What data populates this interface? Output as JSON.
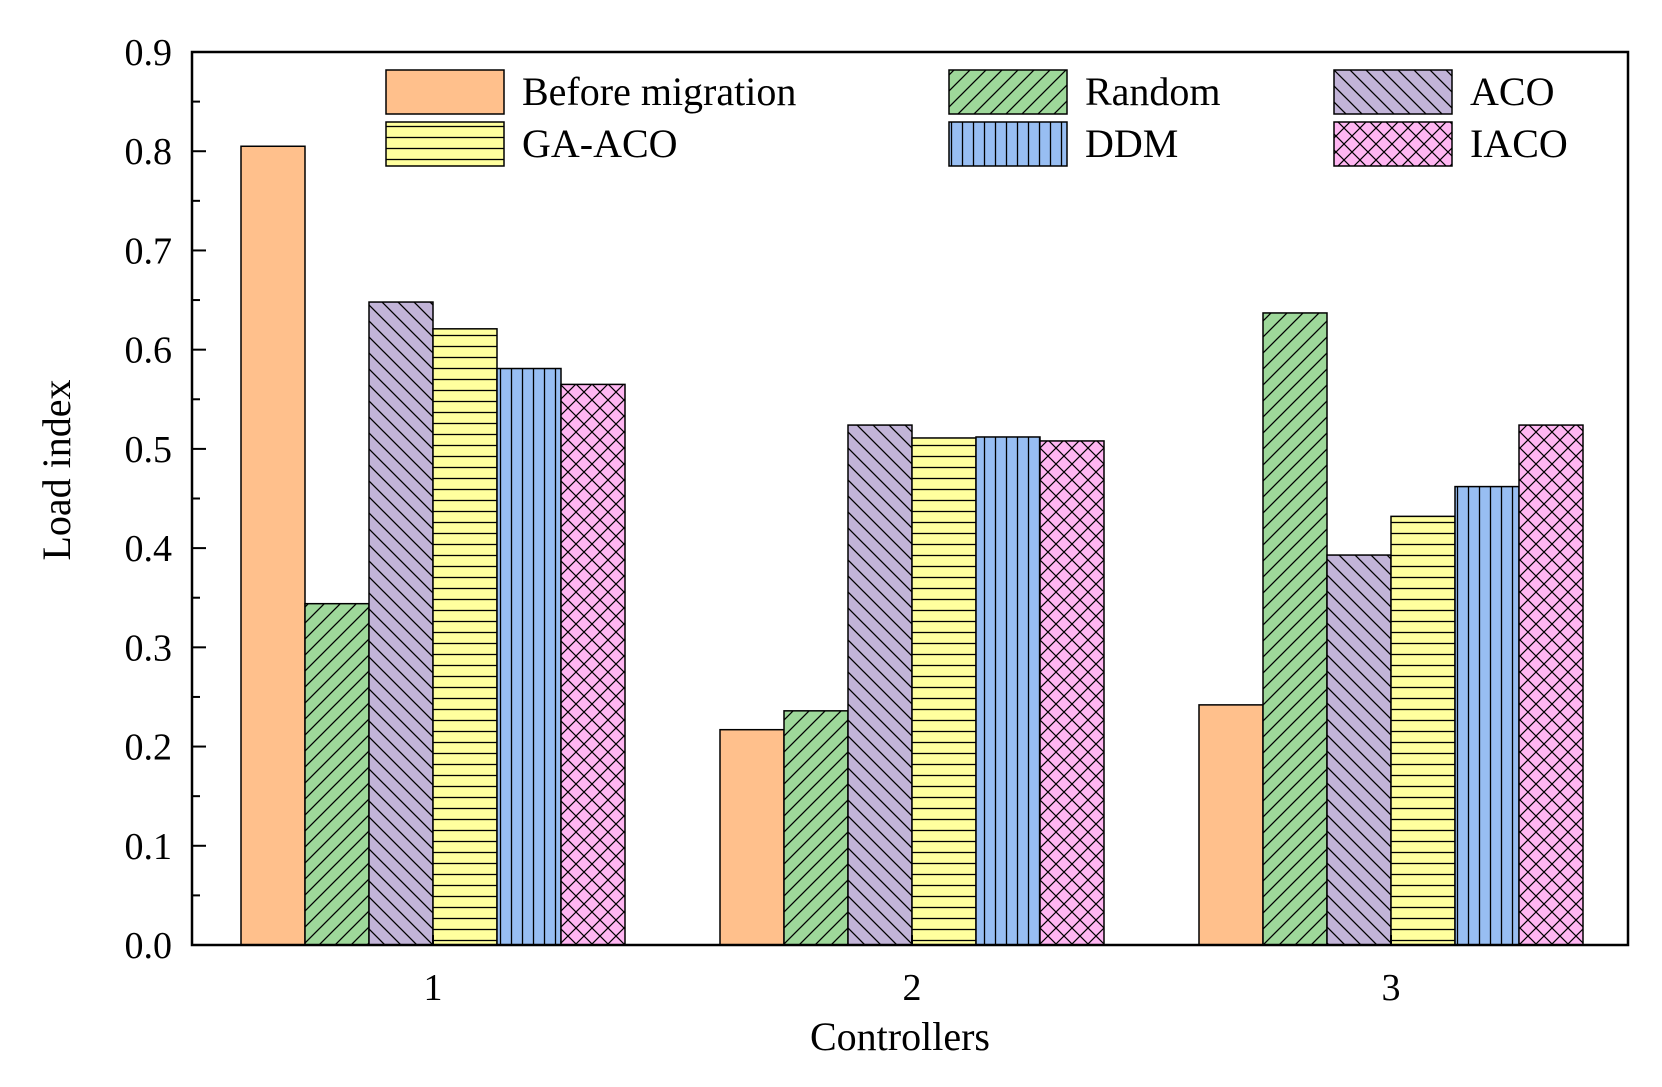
{
  "chart_data": {
    "type": "bar",
    "title": "",
    "xlabel": "Controllers",
    "ylabel": "Load index",
    "categories": [
      "1",
      "2",
      "3"
    ],
    "ylim": [
      0,
      0.9
    ],
    "yticks": [
      "0.0",
      "0.1",
      "0.2",
      "0.3",
      "0.4",
      "0.5",
      "0.6",
      "0.7",
      "0.8",
      "0.9"
    ],
    "grid": false,
    "legend_position": "top",
    "series": [
      {
        "name": "Before migration",
        "values": [
          0.805,
          0.217,
          0.242
        ],
        "color": "#FFC08C",
        "pattern": "none"
      },
      {
        "name": "Random",
        "values": [
          0.344,
          0.236,
          0.637
        ],
        "color": "#9ED89A",
        "pattern": "diag-up"
      },
      {
        "name": "ACO",
        "values": [
          0.648,
          0.524,
          0.393
        ],
        "color": "#C2B4D8",
        "pattern": "diag-down"
      },
      {
        "name": "GA-ACO",
        "values": [
          0.621,
          0.511,
          0.432
        ],
        "color": "#FFFF9E",
        "pattern": "horizontal"
      },
      {
        "name": "DDM",
        "values": [
          0.581,
          0.512,
          0.462
        ],
        "color": "#98BEF2",
        "pattern": "vertical"
      },
      {
        "name": "IACO",
        "values": [
          0.565,
          0.508,
          0.524
        ],
        "color": "#FFB6F2",
        "pattern": "crosshatch"
      }
    ]
  }
}
